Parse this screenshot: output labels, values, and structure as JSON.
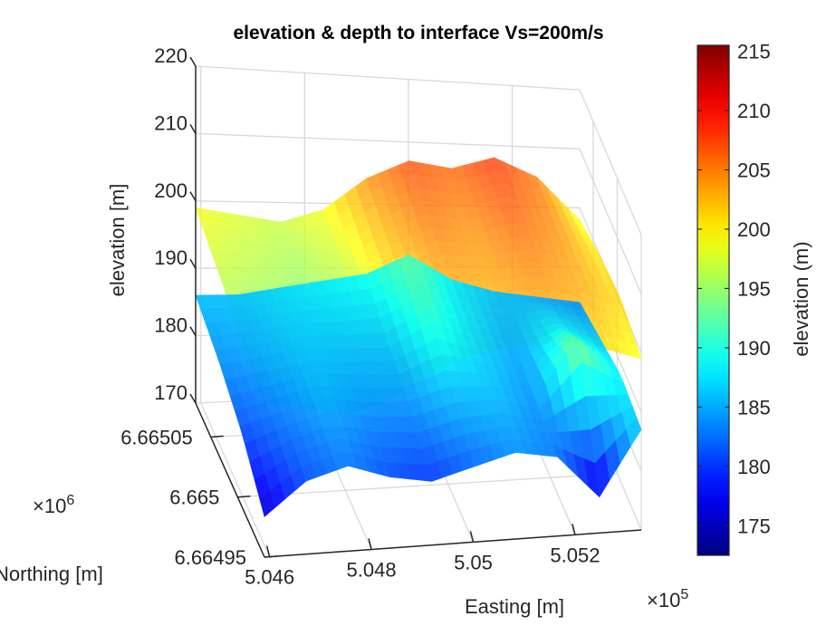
{
  "chart_data": {
    "type": "surface",
    "title": "elevation & depth to interface Vs=200m/s",
    "zlabel": "elevation [m]",
    "xlabel": "Easting [m]",
    "ylabel": "Northing [m]",
    "x_exponent": "×10",
    "x_exponent_power": "5",
    "y_exponent": "×10",
    "y_exponent_power": "6",
    "z_ticks": [
      "170",
      "180",
      "190",
      "200",
      "210",
      "220"
    ],
    "x_ticks": [
      "5.046",
      "5.048",
      "5.05",
      "5.052"
    ],
    "y_ticks": [
      "6.66495",
      "6.665",
      "6.66505"
    ],
    "zlim": [
      170,
      220
    ],
    "xlim": [
      504600,
      505300
    ],
    "ylim": [
      6664950,
      6665060
    ],
    "grid": true,
    "colormap": "jet",
    "colorbar": {
      "label": "elevation (m)",
      "ticks": [
        "175",
        "180",
        "185",
        "190",
        "195",
        "200",
        "205",
        "210",
        "215"
      ],
      "range": [
        172.5,
        215.5
      ]
    },
    "series": [
      {
        "name": "",
        "rows": [
          [
            199,
            198,
            197,
            199,
            204,
            207,
            206,
            208,
            205,
            198
          ],
          [
            197,
            196,
            195,
            197,
            202,
            205,
            204,
            206,
            204,
            200
          ],
          [
            195,
            194,
            193,
            195,
            200,
            203,
            203,
            204,
            203,
            201
          ],
          [
            193,
            192,
            191,
            193,
            197,
            200,
            201,
            202,
            201,
            199
          ]
        ]
      },
      {
        "name": "",
        "rows": [
          [
            186,
            186,
            187,
            188,
            189,
            192,
            188,
            186,
            185,
            184
          ],
          [
            184,
            185,
            186,
            186,
            186,
            190,
            187,
            185,
            188,
            186
          ],
          [
            181,
            183,
            185,
            184,
            184,
            186,
            186,
            184,
            194,
            188
          ],
          [
            176,
            181,
            183,
            181,
            180,
            182,
            184,
            183,
            176,
            187
          ]
        ]
      }
    ]
  }
}
